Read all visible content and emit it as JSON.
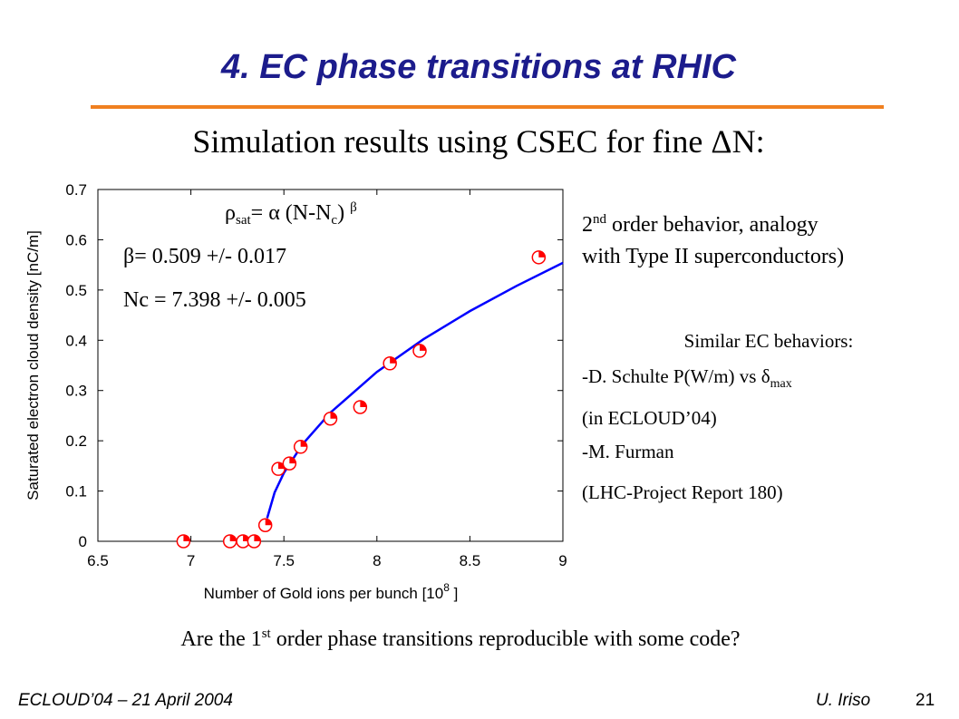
{
  "slide": {
    "title": "4. EC phase transitions at RHIC",
    "subtitle": "Simulation results using CSEC for fine ΔN:",
    "note1": [
      "2",
      "nd",
      " order behavior, analogy",
      "with Type II superconductors)"
    ],
    "similar": {
      "heading": "Similar EC behaviors:",
      "line1": [
        "-D. Schulte P(W/m) vs δ",
        "max"
      ],
      "line2": "(in ECLOUD’04)",
      "line3": "-M. Furman",
      "line4": "(LHC-Project Report 180)"
    },
    "question": [
      "Are the 1",
      "st",
      " order phase transitions reproducible with some code?"
    ],
    "footer": {
      "left": "ECLOUD’04 – 21 April 2004",
      "author": "U. Iriso",
      "page": "21"
    }
  },
  "chart_data": {
    "type": "scatter",
    "ylabel": "Saturated electron cloud density [nC/m]",
    "xlabel": [
      "Number of Gold ions per bunch [10",
      "8",
      " ]"
    ],
    "formula": [
      "ρ",
      "sat",
      "=  α  (N-N",
      "c",
      ")  ",
      "β"
    ],
    "annotations": [
      "β= 0.509 +/- 0.017",
      "Nc = 7.398 +/- 0.005"
    ],
    "xlim": [
      6.5,
      9
    ],
    "xticks": [
      6.5,
      7,
      7.5,
      8,
      8.5,
      9
    ],
    "ylim": [
      0,
      0.7
    ],
    "yticks": [
      0,
      0.1,
      0.2,
      0.3,
      0.4,
      0.5,
      0.6,
      0.7
    ],
    "series": [
      {
        "marker": "circle",
        "color": "#ff0000",
        "x": [
          6.96,
          7.21,
          7.28,
          7.34,
          7.4,
          7.47,
          7.53,
          7.59,
          7.75,
          7.91,
          8.07,
          8.23,
          8.87
        ],
        "values": [
          0,
          0,
          0,
          0,
          0.032,
          0.144,
          0.155,
          0.188,
          0.244,
          0.267,
          0.354,
          0.379,
          0.565
        ]
      },
      {
        "marker": "line",
        "color": "#0000ff",
        "x": [
          7.41,
          7.45,
          7.5,
          7.6,
          7.75,
          8.0,
          8.25,
          8.5,
          8.75,
          9.0
        ],
        "values": [
          0.046,
          0.097,
          0.136,
          0.193,
          0.256,
          0.337,
          0.402,
          0.458,
          0.508,
          0.554
        ]
      }
    ]
  }
}
